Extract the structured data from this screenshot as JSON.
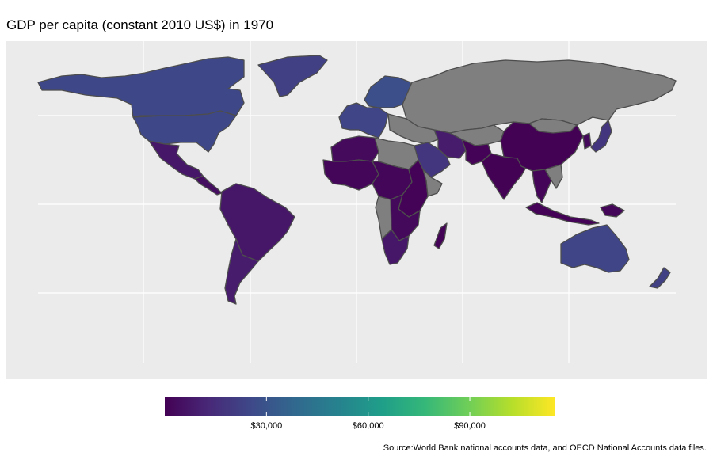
{
  "title": "GDP per capita (constant 2010 US$) in 1970",
  "caption": "Source:World Bank national accounts data, and OECD National Accounts data files.",
  "colors": {
    "panel_bg": "#ebebeb",
    "grid": "#ffffff",
    "border": "#4d4d4d",
    "no_data": "#7f7f7f",
    "viridis": [
      "#440154",
      "#482878",
      "#3e4989",
      "#31688e",
      "#26828e",
      "#1f9e89",
      "#35b779",
      "#6ece58",
      "#b5de2b",
      "#fde725"
    ]
  },
  "legend": {
    "title": "",
    "min": 0,
    "max": 115000,
    "breaks": [
      {
        "value": 30000,
        "label": "$30,000"
      },
      {
        "value": 60000,
        "label": "$60,000"
      },
      {
        "value": 90000,
        "label": "$90,000"
      }
    ]
  },
  "regions": [
    {
      "name": "Canada",
      "value": 25000
    },
    {
      "name": "United States",
      "value": 25000
    },
    {
      "name": "Greenland",
      "value": 22000
    },
    {
      "name": "Mexico",
      "value": 7000
    },
    {
      "name": "Central America",
      "value": 4000
    },
    {
      "name": "South America",
      "value": 7000
    },
    {
      "name": "Southern Cone",
      "value": 9000
    },
    {
      "name": "Western Europe",
      "value": 24000
    },
    {
      "name": "Scandinavia",
      "value": 28000
    },
    {
      "name": "Russia / USSR",
      "value": null
    },
    {
      "name": "Middle East",
      "value": null
    },
    {
      "name": "Iran",
      "value": 9000
    },
    {
      "name": "Saudi Arabia",
      "value": 18000
    },
    {
      "name": "North Africa",
      "value": 3000
    },
    {
      "name": "Libya / Egypt",
      "value": null
    },
    {
      "name": "West Africa",
      "value": 1500
    },
    {
      "name": "Central Africa",
      "value": 1500
    },
    {
      "name": "East Africa",
      "value": 800
    },
    {
      "name": "Horn of Africa",
      "value": null
    },
    {
      "name": "Southern Africa",
      "value": 2500
    },
    {
      "name": "Angola / Mozambique",
      "value": null
    },
    {
      "name": "South Africa",
      "value": 7000
    },
    {
      "name": "Madagascar",
      "value": 600
    },
    {
      "name": "Central Asia",
      "value": null
    },
    {
      "name": "Pakistan / Afghanistan",
      "value": 600
    },
    {
      "name": "India",
      "value": 400
    },
    {
      "name": "China",
      "value": 300
    },
    {
      "name": "Mongolia",
      "value": null
    },
    {
      "name": "Japan",
      "value": 18000
    },
    {
      "name": "Korea",
      "value": 2500
    },
    {
      "name": "Southeast Asia",
      "value": 1000
    },
    {
      "name": "Vietnam / Laos",
      "value": null
    },
    {
      "name": "Indonesia",
      "value": 800
    },
    {
      "name": "Papua New Guinea",
      "value": 1500
    },
    {
      "name": "Australia",
      "value": 24000
    },
    {
      "name": "New Zealand",
      "value": 22000
    }
  ]
}
